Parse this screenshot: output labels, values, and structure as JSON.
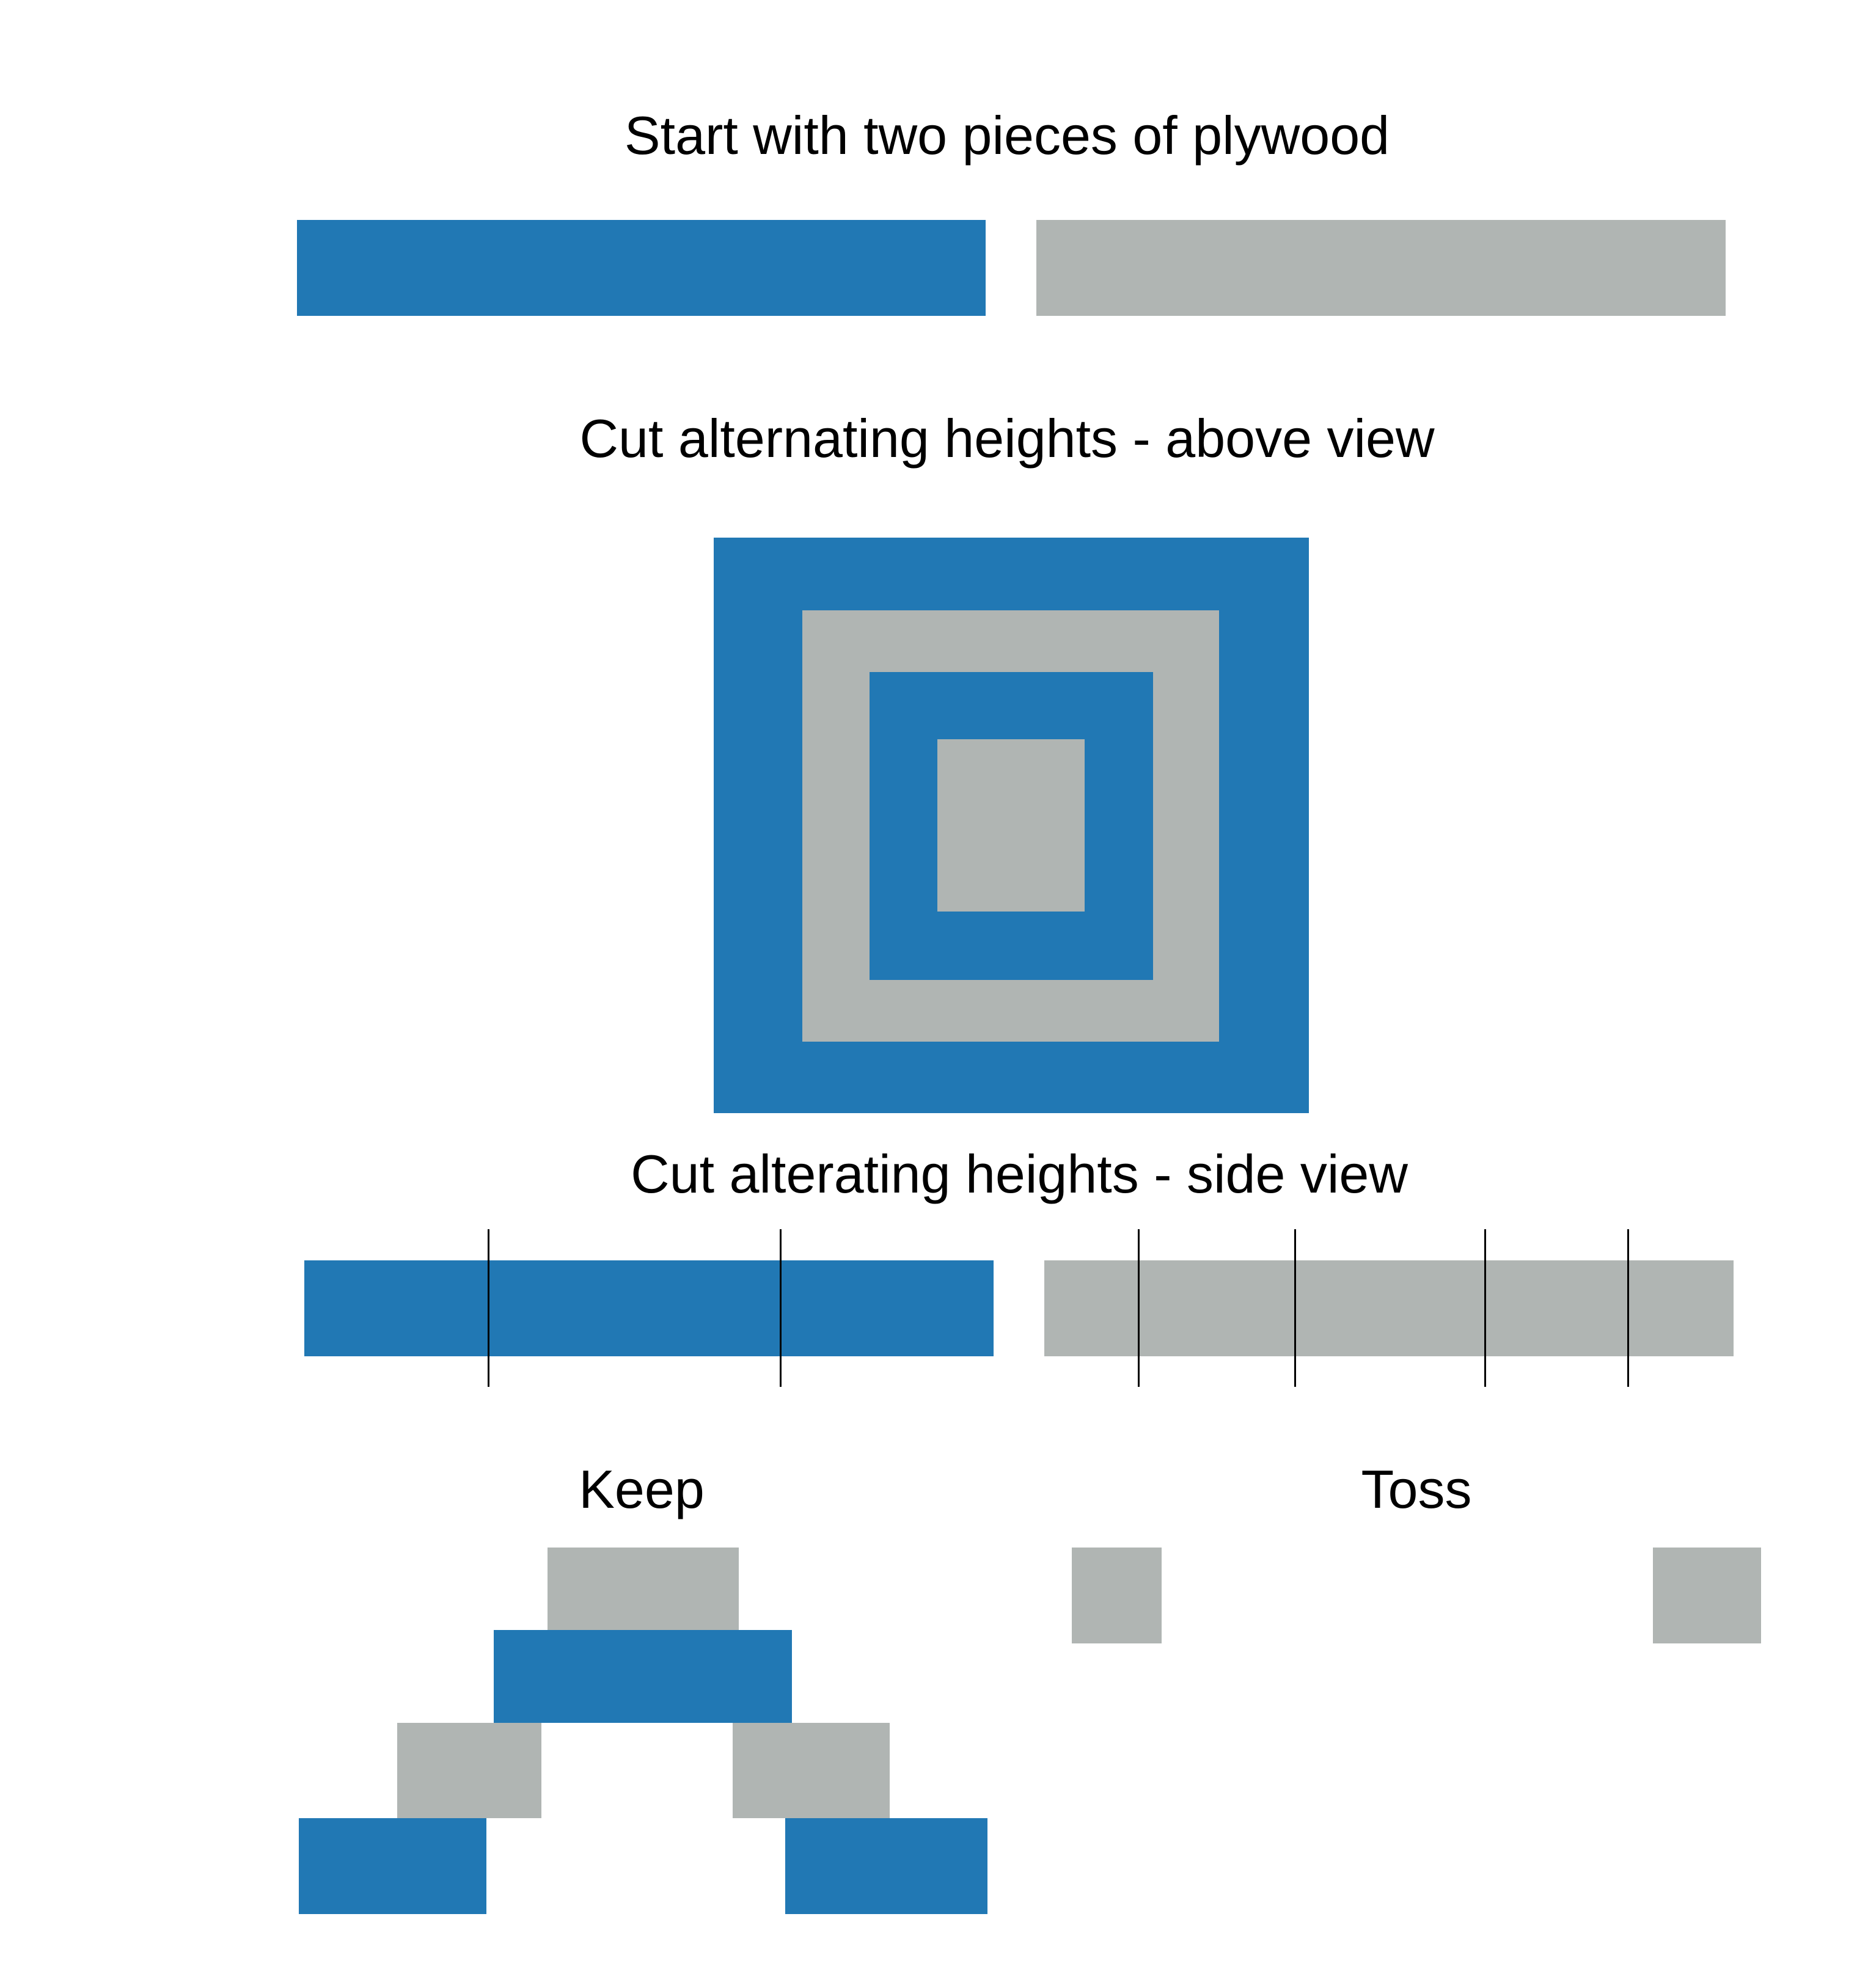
{
  "titles": {
    "start": "Start with two pieces of plywood",
    "above": "Cut alternating heights - above view",
    "side": "Cut alterating heights - side view",
    "keep": "Keep",
    "toss": "Toss"
  },
  "colors": {
    "blue_plywood": "#2178b4",
    "gray_plywood": "#b0b5b3",
    "cut_line": "#000000",
    "background": "#ffffff"
  }
}
